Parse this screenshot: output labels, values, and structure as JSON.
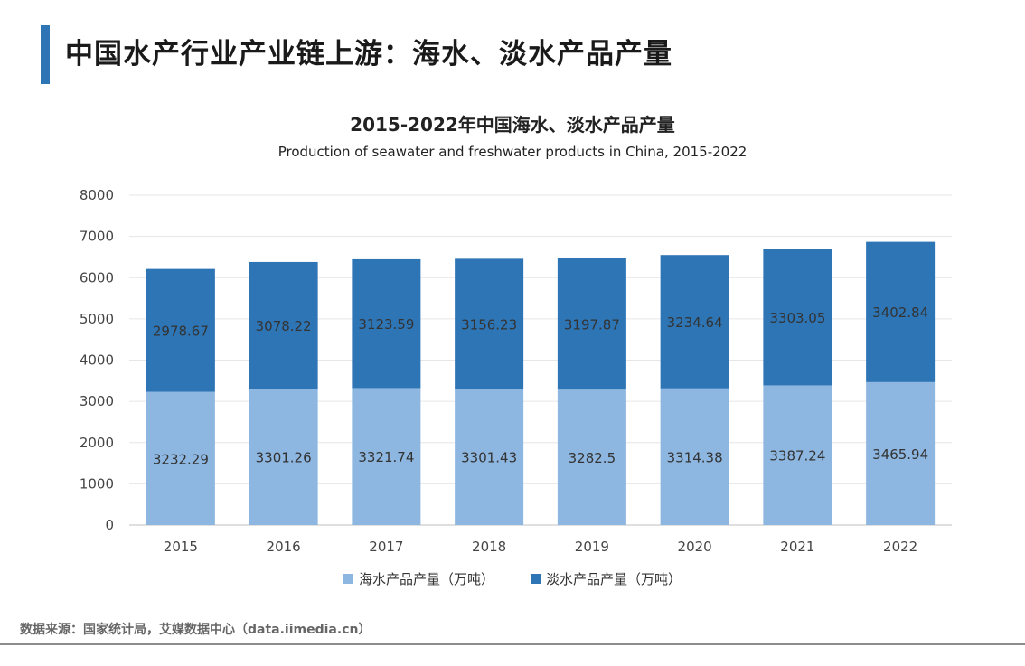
{
  "header": {
    "title": "中国水产行业产业链上游：海水、淡水产品产量",
    "accent_color": "#2e75b6"
  },
  "chart_data": {
    "type": "bar",
    "stacked": true,
    "title": "2015-2022年中国海水、淡水产品产量",
    "subtitle": "Production of seawater and freshwater products in China, 2015-2022",
    "categories": [
      "2015",
      "2016",
      "2017",
      "2018",
      "2019",
      "2020",
      "2021",
      "2022"
    ],
    "series": [
      {
        "name": "海水产品产量（万吨）",
        "color": "#8db7e0",
        "values": [
          3232.29,
          3301.26,
          3321.74,
          3301.43,
          3282.5,
          3314.38,
          3387.24,
          3465.94
        ],
        "labels": [
          "3232.29",
          "3301.26",
          "3321.74",
          "3301.43",
          "3282.5",
          "3314.38",
          "3387.24",
          "3465.94"
        ]
      },
      {
        "name": "淡水产品产量（万吨）",
        "color": "#2e75b6",
        "values": [
          2978.67,
          3078.22,
          3123.59,
          3156.23,
          3197.87,
          3234.64,
          3303.05,
          3402.84
        ],
        "labels": [
          "2978.67",
          "3078.22",
          "3123.59",
          "3156.23",
          "3197.87",
          "3234.64",
          "3303.05",
          "3402.84"
        ]
      }
    ],
    "ylim": [
      0,
      8000
    ],
    "yticks": [
      "0",
      "1000",
      "2000",
      "3000",
      "4000",
      "5000",
      "6000",
      "7000",
      "8000"
    ],
    "xlabel": "",
    "ylabel": "",
    "grid": true,
    "legend_position": "bottom"
  },
  "footer": {
    "source": "数据来源：国家统计局，艾媒数据中心（data.iimedia.cn）"
  }
}
